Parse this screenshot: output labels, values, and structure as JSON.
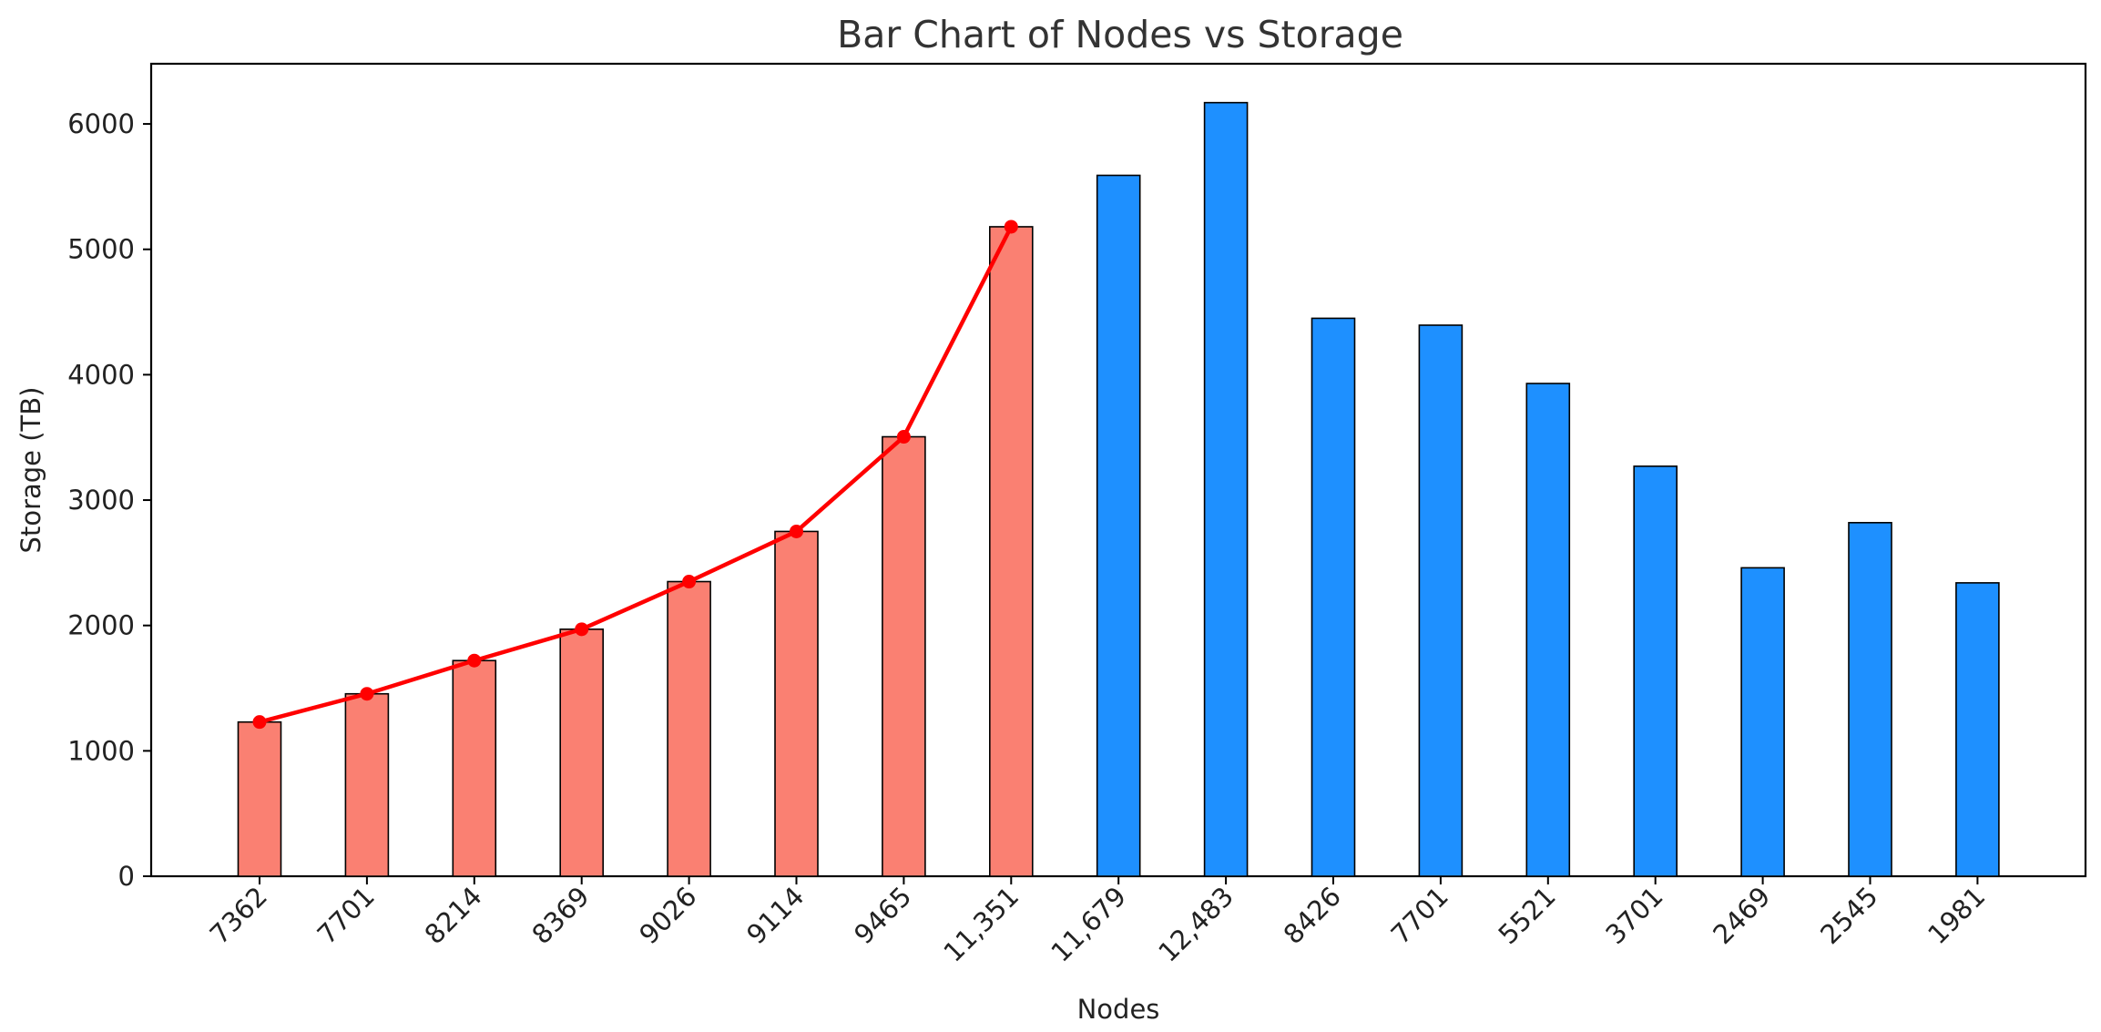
{
  "chart_data": {
    "type": "bar",
    "title": "Bar Chart of Nodes vs Storage",
    "xlabel": "Nodes",
    "ylabel": "Storage (TB)",
    "ylim": [
      0,
      6480
    ],
    "yticks": [
      0,
      1000,
      2000,
      3000,
      4000,
      5000,
      6000
    ],
    "categories": [
      "7362",
      "7701",
      "8214",
      "8369",
      "9026",
      "9114",
      "9465",
      "11,351",
      "11,679",
      "12,483",
      "8426",
      "7701",
      "5521",
      "3701",
      "2469",
      "2545",
      "1981"
    ],
    "values": [
      1230,
      1455,
      1720,
      1970,
      2350,
      2750,
      3505,
      5180,
      5590,
      6170,
      4450,
      4395,
      3930,
      3270,
      2460,
      2820,
      2340
    ],
    "highlight_count": 8,
    "trend_line": {
      "points_index": [
        0,
        1,
        2,
        3,
        4,
        5,
        6,
        7
      ],
      "values": [
        1230,
        1455,
        1720,
        1970,
        2350,
        2750,
        3505,
        5180
      ]
    },
    "colors": {
      "highlight_bar": "#fa8072",
      "default_bar": "#1e90ff",
      "trend_line": "#ff0000",
      "bar_edge": "#000000"
    },
    "grid": false,
    "legend": "none"
  }
}
